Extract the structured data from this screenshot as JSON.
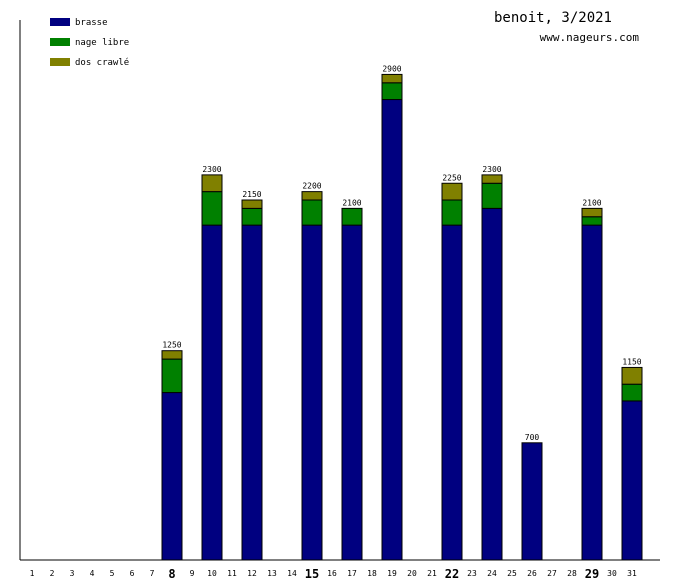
{
  "header": {
    "title": "benoit, 3/2021",
    "site": "www.nageurs.com"
  },
  "colors": {
    "brasse": "#000080",
    "nage_libre": "#008000",
    "dos_crawle": "#808000",
    "axis": "#000000",
    "bar_outline": "#000000"
  },
  "chart_data": {
    "type": "bar",
    "stacked": true,
    "categories": [
      "1",
      "2",
      "3",
      "4",
      "5",
      "6",
      "7",
      "8",
      "9",
      "10",
      "11",
      "12",
      "13",
      "14",
      "15",
      "16",
      "17",
      "18",
      "19",
      "20",
      "21",
      "22",
      "23",
      "24",
      "25",
      "26",
      "27",
      "28",
      "29",
      "30",
      "31"
    ],
    "bold_categories": [
      "8",
      "15",
      "22",
      "29"
    ],
    "series": [
      {
        "name": "brasse",
        "color": "#000080",
        "values": [
          0,
          0,
          0,
          0,
          0,
          0,
          0,
          0,
          0,
          0,
          0,
          0,
          0,
          0,
          0,
          0,
          0,
          0,
          0,
          0,
          0,
          0,
          0,
          0,
          0,
          0,
          0,
          0,
          0,
          0,
          0
        ]
      },
      {
        "name": "nage libre",
        "color": "#008000",
        "values": [
          0,
          0,
          0,
          0,
          0,
          0,
          0,
          0,
          0,
          0,
          0,
          0,
          0,
          0,
          0,
          0,
          0,
          0,
          0,
          0,
          0,
          0,
          0,
          0,
          0,
          0,
          0,
          0,
          0,
          0,
          0
        ]
      },
      {
        "name": "dos crawlé",
        "color": "#808000",
        "values": [
          0,
          0,
          0,
          0,
          0,
          0,
          0,
          0,
          0,
          0,
          0,
          0,
          0,
          0,
          0,
          0,
          0,
          0,
          0,
          0,
          0,
          0,
          0,
          0,
          0,
          0,
          0,
          0,
          0,
          0,
          0
        ]
      }
    ],
    "bars": [
      {
        "category": "8",
        "brasse": 1000,
        "nage_libre": 200,
        "dos_crawle": 50
      },
      {
        "category": "10",
        "brasse": 2000,
        "nage_libre": 200,
        "dos_crawle": 100
      },
      {
        "category": "12",
        "brasse": 2000,
        "nage_libre": 100,
        "dos_crawle": 50
      },
      {
        "category": "15",
        "brasse": 2000,
        "nage_libre": 150,
        "dos_crawle": 50
      },
      {
        "category": "17",
        "brasse": 2000,
        "nage_libre": 100,
        "dos_crawle": 0
      },
      {
        "category": "19",
        "brasse": 2750,
        "nage_libre": 100,
        "dos_crawle": 50
      },
      {
        "category": "22",
        "brasse": 2000,
        "nage_libre": 150,
        "dos_crawle": 100
      },
      {
        "category": "24",
        "brasse": 2100,
        "nage_libre": 150,
        "dos_crawle": 50
      },
      {
        "category": "26",
        "brasse": 700,
        "nage_libre": 0,
        "dos_crawle": 0
      },
      {
        "category": "29",
        "brasse": 2000,
        "nage_libre": 50,
        "dos_crawle": 50
      },
      {
        "category": "31",
        "brasse": 950,
        "nage_libre": 100,
        "dos_crawle": 100
      }
    ],
    "totals": [
      {
        "category": "8",
        "label": "1250"
      },
      {
        "category": "10",
        "label": "2300"
      },
      {
        "category": "12",
        "label": "2150"
      },
      {
        "category": "15",
        "label": "2200"
      },
      {
        "category": "17",
        "label": "2100"
      },
      {
        "category": "19",
        "label": "2900"
      },
      {
        "category": "22",
        "label": "2250"
      },
      {
        "category": "24",
        "label": "2300"
      },
      {
        "category": "26",
        "label": "700"
      },
      {
        "category": "29",
        "label": "2100"
      },
      {
        "category": "31",
        "label": "1150"
      }
    ],
    "legend": [
      "brasse",
      "nage libre",
      "dos crawlé"
    ],
    "legend_position": "top-left",
    "ylim": [
      0,
      3225
    ],
    "grid": false
  }
}
